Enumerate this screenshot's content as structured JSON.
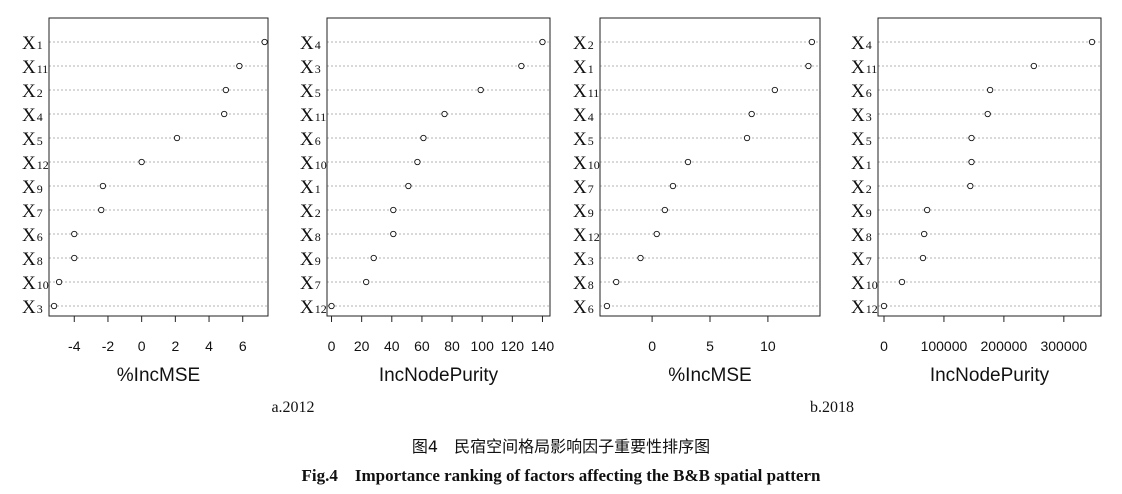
{
  "chart_data": [
    {
      "type": "scatter",
      "title": "",
      "xlabel": "%IncMSE",
      "ylabel": "",
      "xlim": [
        -5.5,
        7.5
      ],
      "xticks": [
        -4,
        -2,
        0,
        2,
        4,
        6
      ],
      "grid": true,
      "categories": [
        {
          "base": "X",
          "sub": "1"
        },
        {
          "base": "X",
          "sub": "11"
        },
        {
          "base": "X",
          "sub": "2"
        },
        {
          "base": "X",
          "sub": "4"
        },
        {
          "base": "X",
          "sub": "5"
        },
        {
          "base": "X",
          "sub": "12"
        },
        {
          "base": "X",
          "sub": "9"
        },
        {
          "base": "X",
          "sub": "7"
        },
        {
          "base": "X",
          "sub": "6"
        },
        {
          "base": "X",
          "sub": "8"
        },
        {
          "base": "X",
          "sub": "10"
        },
        {
          "base": "X",
          "sub": "3"
        }
      ],
      "values": [
        7.3,
        5.8,
        5.0,
        4.9,
        2.1,
        0.0,
        -2.3,
        -2.4,
        -4.0,
        -4.0,
        -4.9,
        -5.2
      ]
    },
    {
      "type": "scatter",
      "title": "",
      "xlabel": "IncNodePurity",
      "ylabel": "",
      "xlim": [
        -3,
        145
      ],
      "xticks": [
        0,
        20,
        40,
        60,
        80,
        100,
        120,
        140
      ],
      "grid": true,
      "categories": [
        {
          "base": "X",
          "sub": "4"
        },
        {
          "base": "X",
          "sub": "3"
        },
        {
          "base": "X",
          "sub": "5"
        },
        {
          "base": "X",
          "sub": "11"
        },
        {
          "base": "X",
          "sub": "6"
        },
        {
          "base": "X",
          "sub": "10"
        },
        {
          "base": "X",
          "sub": "1"
        },
        {
          "base": "X",
          "sub": "2"
        },
        {
          "base": "X",
          "sub": "8"
        },
        {
          "base": "X",
          "sub": "9"
        },
        {
          "base": "X",
          "sub": "7"
        },
        {
          "base": "X",
          "sub": "12"
        }
      ],
      "values": [
        140,
        126,
        99,
        75,
        61,
        57,
        51,
        41,
        41,
        28,
        23,
        0
      ]
    },
    {
      "type": "scatter",
      "title": "",
      "xlabel": "%IncMSE",
      "ylabel": "",
      "xlim": [
        -4.5,
        14.5
      ],
      "xticks": [
        0,
        5,
        10
      ],
      "grid": true,
      "categories": [
        {
          "base": "X",
          "sub": "2"
        },
        {
          "base": "X",
          "sub": "1"
        },
        {
          "base": "X",
          "sub": "11"
        },
        {
          "base": "X",
          "sub": "4"
        },
        {
          "base": "X",
          "sub": "5"
        },
        {
          "base": "X",
          "sub": "10"
        },
        {
          "base": "X",
          "sub": "7"
        },
        {
          "base": "X",
          "sub": "9"
        },
        {
          "base": "X",
          "sub": "12"
        },
        {
          "base": "X",
          "sub": "3"
        },
        {
          "base": "X",
          "sub": "8"
        },
        {
          "base": "X",
          "sub": "6"
        }
      ],
      "values": [
        13.8,
        13.5,
        10.6,
        8.6,
        8.2,
        3.1,
        1.8,
        1.1,
        0.4,
        -1.0,
        -3.1,
        -3.9
      ]
    },
    {
      "type": "scatter",
      "title": "",
      "xlabel": "IncNodePurity",
      "ylabel": "",
      "xlim": [
        -10000,
        362000
      ],
      "xticks": [
        0,
        100000,
        200000,
        300000
      ],
      "grid": true,
      "categories": [
        {
          "base": "X",
          "sub": "4"
        },
        {
          "base": "X",
          "sub": "11"
        },
        {
          "base": "X",
          "sub": "6"
        },
        {
          "base": "X",
          "sub": "3"
        },
        {
          "base": "X",
          "sub": "5"
        },
        {
          "base": "X",
          "sub": "1"
        },
        {
          "base": "X",
          "sub": "2"
        },
        {
          "base": "X",
          "sub": "9"
        },
        {
          "base": "X",
          "sub": "8"
        },
        {
          "base": "X",
          "sub": "7"
        },
        {
          "base": "X",
          "sub": "10"
        },
        {
          "base": "X",
          "sub": "12"
        }
      ],
      "values": [
        347000,
        250000,
        177000,
        173000,
        146000,
        146000,
        144000,
        72000,
        67000,
        65000,
        30000,
        0
      ]
    }
  ],
  "labels": {
    "sub_a": "a.2012",
    "sub_b": "b.2018",
    "caption_cn": "图4　民宿空间格局影响因子重要性排序图",
    "caption_en": "Fig.4　Importance ranking of factors affecting the B&B spatial pattern"
  }
}
